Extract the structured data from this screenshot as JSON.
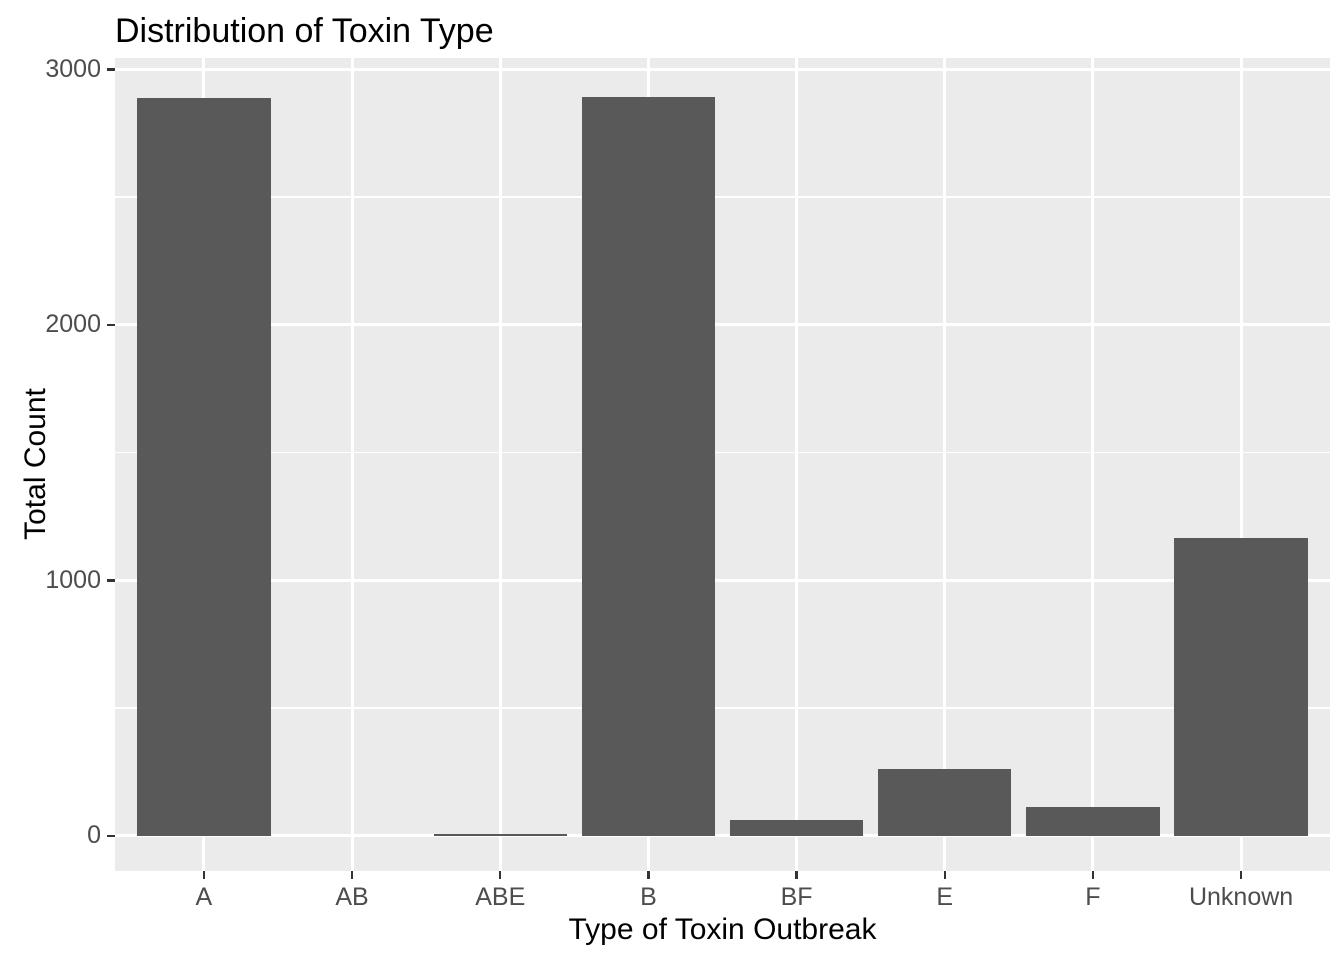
{
  "chart_data": {
    "type": "bar",
    "title": "Distribution of Toxin Type",
    "xlabel": "Type of Toxin Outbreak",
    "ylabel": "Total Count",
    "categories": [
      "A",
      "AB",
      "ABE",
      "B",
      "BF",
      "E",
      "F",
      "Unknown"
    ],
    "values": [
      2890,
      0,
      8,
      2893,
      64,
      263,
      113,
      1168
    ],
    "y_axis": {
      "tick_labels": [
        "0",
        "1000",
        "2000",
        "3000"
      ],
      "major_breaks": [
        0,
        1000,
        2000,
        3000
      ],
      "minor_breaks": [
        500,
        1500,
        2500
      ],
      "data_range": [
        0,
        3000
      ]
    },
    "legend_position": "none",
    "grid": {
      "horizontal_major": true,
      "horizontal_minor": true,
      "vertical_at_categories": true
    },
    "style": {
      "bar_color": "#595959",
      "panel_background": "#EBEBEB",
      "grid_color": "#FFFFFF",
      "tick_text_color": "#4D4D4D",
      "tick_mark_color": "#333333",
      "title_color": "#000000",
      "figure_background": "#FFFFFF"
    }
  }
}
